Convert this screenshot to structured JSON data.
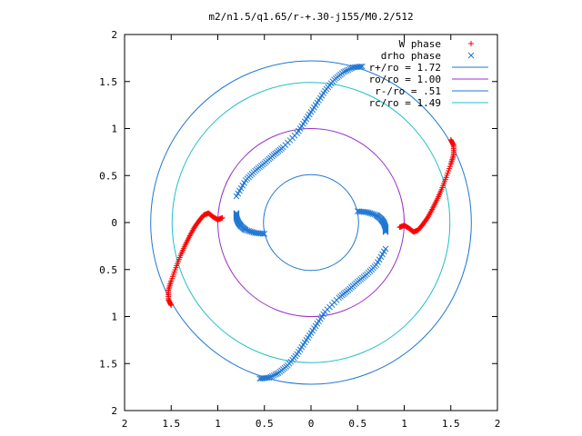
{
  "chart_data": {
    "type": "scatter",
    "title": "m2/n1.5/q1.65/r-+.30-j155/M0.2/512",
    "xlim": [
      -2,
      2
    ],
    "ylim": [
      -2,
      2
    ],
    "grid": false,
    "legend_position": "top-right",
    "x_tick_labels": [
      "2",
      "1.5",
      "1",
      "0.5",
      "0",
      "0.5",
      "1",
      "1.5",
      "2"
    ],
    "y_tick_labels": [
      "2",
      "1.5",
      "1",
      "0.5",
      "0",
      "0.5",
      "1",
      "1.5",
      "2"
    ],
    "tick_values": [
      -2,
      -1.5,
      -1,
      -0.5,
      0,
      0.5,
      1,
      1.5,
      2
    ],
    "series": [
      {
        "name": "W phase",
        "marker": "+",
        "color": "#ff0000",
        "arms": [
          [
            [
              0.95,
              -0.05
            ],
            [
              1.0,
              -0.03
            ],
            [
              1.05,
              -0.06
            ],
            [
              1.1,
              -0.1
            ],
            [
              1.15,
              -0.08
            ],
            [
              1.2,
              -0.02
            ],
            [
              1.25,
              0.05
            ],
            [
              1.3,
              0.14
            ],
            [
              1.35,
              0.24
            ],
            [
              1.4,
              0.35
            ],
            [
              1.45,
              0.48
            ],
            [
              1.5,
              0.62
            ],
            [
              1.53,
              0.72
            ],
            [
              1.53,
              0.82
            ],
            [
              1.5,
              0.88
            ]
          ],
          [
            [
              -0.95,
              0.05
            ],
            [
              -1.0,
              0.03
            ],
            [
              -1.05,
              0.06
            ],
            [
              -1.1,
              0.1
            ],
            [
              -1.15,
              0.08
            ],
            [
              -1.2,
              0.02
            ],
            [
              -1.25,
              -0.05
            ],
            [
              -1.3,
              -0.14
            ],
            [
              -1.35,
              -0.24
            ],
            [
              -1.4,
              -0.35
            ],
            [
              -1.45,
              -0.48
            ],
            [
              -1.5,
              -0.62
            ],
            [
              -1.53,
              -0.72
            ],
            [
              -1.53,
              -0.82
            ],
            [
              -1.5,
              -0.88
            ]
          ]
        ]
      },
      {
        "name": "drho phase",
        "marker": "x",
        "color": "#1f77d4",
        "arms": [
          [
            [
              0.5,
              0.12
            ],
            [
              0.6,
              0.11
            ],
            [
              0.7,
              0.08
            ],
            [
              0.75,
              0.04
            ],
            [
              0.78,
              0.0
            ],
            [
              0.8,
              -0.05
            ],
            [
              0.8,
              -0.1
            ]
          ],
          [
            [
              0.8,
              -0.28
            ],
            [
              0.7,
              -0.45
            ],
            [
              0.6,
              -0.55
            ],
            [
              0.5,
              -0.63
            ],
            [
              0.4,
              -0.72
            ],
            [
              0.3,
              -0.8
            ],
            [
              0.15,
              -0.95
            ],
            [
              0.05,
              -1.1
            ],
            [
              -0.05,
              -1.25
            ],
            [
              -0.15,
              -1.4
            ],
            [
              -0.25,
              -1.52
            ],
            [
              -0.35,
              -1.6
            ],
            [
              -0.45,
              -1.65
            ],
            [
              -0.55,
              -1.66
            ]
          ],
          [
            [
              -0.5,
              -0.12
            ],
            [
              -0.6,
              -0.11
            ],
            [
              -0.7,
              -0.08
            ],
            [
              -0.75,
              -0.04
            ],
            [
              -0.78,
              0.0
            ],
            [
              -0.8,
              0.05
            ],
            [
              -0.8,
              0.1
            ]
          ],
          [
            [
              -0.8,
              0.28
            ],
            [
              -0.7,
              0.45
            ],
            [
              -0.6,
              0.55
            ],
            [
              -0.5,
              0.63
            ],
            [
              -0.4,
              0.72
            ],
            [
              -0.3,
              0.8
            ],
            [
              -0.15,
              0.95
            ],
            [
              -0.05,
              1.1
            ],
            [
              0.05,
              1.25
            ],
            [
              0.15,
              1.4
            ],
            [
              0.25,
              1.52
            ],
            [
              0.35,
              1.6
            ],
            [
              0.45,
              1.65
            ],
            [
              0.55,
              1.66
            ]
          ]
        ]
      }
    ],
    "circles": [
      {
        "name": "r+/ro = 1.72",
        "radius": 1.72,
        "color": "#1f77d4"
      },
      {
        "name": "ro/ro = 1.00",
        "radius": 1.0,
        "color": "#9932cc"
      },
      {
        "name": "r-/ro = .51",
        "radius": 0.51,
        "color": "#1f77d4"
      },
      {
        "name": "rc/ro = 1.49",
        "radius": 1.49,
        "color": "#20c0c8"
      }
    ]
  }
}
